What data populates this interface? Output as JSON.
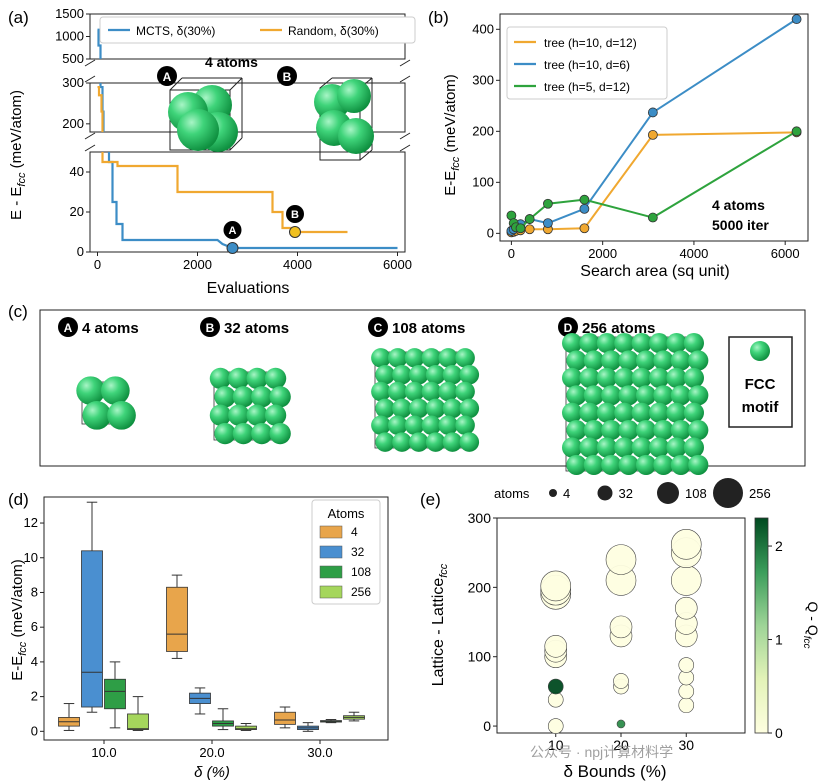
{
  "panels": {
    "a": "(a)",
    "b": "(b)",
    "c": "(c)",
    "d": "(d)",
    "e": "(e)"
  },
  "watermark": "公众号 · npj计算材料学",
  "chart_data": [
    {
      "id": "a",
      "type": "line",
      "xlabel": "Evaluations",
      "ylabel": "E - E",
      "ylabel_sub": "fcc",
      "ylabel_unit": " (meV/atom)",
      "annotation": "4 atoms",
      "broken_axis": true,
      "segments": [
        {
          "ylim": [
            500,
            1500
          ],
          "ticks": [
            500,
            1000,
            1500
          ]
        },
        {
          "ylim": [
            180,
            300
          ],
          "ticks": [
            200,
            300
          ]
        },
        {
          "ylim": [
            0,
            50
          ],
          "ticks": [
            0,
            20,
            40
          ]
        }
      ],
      "xlim": [
        -150,
        6150
      ],
      "xticks": [
        0,
        2000,
        4000,
        6000
      ],
      "legend_placement": "top",
      "series": [
        {
          "name": "MCTS, δ(30%)",
          "color": "#3c8dc6",
          "x": [
            0,
            20,
            20,
            60,
            60,
            100,
            100,
            120,
            120,
            230,
            230,
            300,
            300,
            380,
            380,
            500,
            500,
            2400,
            2500,
            2700,
            6000
          ],
          "y": [
            1150,
            1150,
            800,
            800,
            290,
            290,
            230,
            230,
            130,
            130,
            45,
            45,
            25,
            25,
            14,
            14,
            6,
            6,
            4,
            2,
            2
          ]
        },
        {
          "name": "Random, δ(30%)",
          "color": "#f0a830",
          "x": [
            0,
            30,
            30,
            80,
            80,
            100,
            100,
            400,
            400,
            1600,
            1600,
            3500,
            3500,
            3700,
            3700,
            3900,
            3900,
            5000
          ],
          "y": [
            290,
            290,
            270,
            270,
            230,
            230,
            45,
            45,
            43,
            43,
            30,
            30,
            20,
            20,
            12,
            12,
            10,
            10
          ]
        }
      ],
      "markers": [
        {
          "label": "A",
          "x": 2700,
          "y": 2,
          "color": "#3c8dc6"
        },
        {
          "label": "B",
          "x": 3950,
          "y": 10,
          "color": "#f0c020"
        }
      ],
      "inset_labels": [
        "A",
        "B"
      ]
    },
    {
      "id": "b",
      "type": "line",
      "xlabel": "Search area (sq unit)",
      "ylabel": "E-E",
      "ylabel_sub": "fcc",
      "ylabel_unit": " (meV/atom)",
      "xlim": [
        -250,
        6500
      ],
      "ylim": [
        -15,
        430
      ],
      "xticks": [
        0,
        2000,
        4000,
        6000
      ],
      "yticks": [
        0,
        100,
        200,
        300,
        400
      ],
      "annotation": [
        "4 atoms",
        "5000 iter"
      ],
      "legend_placement": "top-left",
      "series": [
        {
          "name": "tree (h=10, d=12)",
          "color": "#f0a830",
          "x": [
            0,
            50,
            100,
            200,
            400,
            800,
            1600,
            3100,
            6250
          ],
          "y": [
            2,
            3,
            5,
            6,
            8,
            8,
            10,
            193,
            198
          ]
        },
        {
          "name": "tree (h=10, d=6)",
          "color": "#3c8dc6",
          "x": [
            0,
            50,
            100,
            200,
            400,
            800,
            1600,
            3100,
            6250
          ],
          "y": [
            5,
            8,
            12,
            18,
            28,
            20,
            48,
            237,
            420
          ]
        },
        {
          "name": "tree (h=5, d=12)",
          "color": "#2ea33d",
          "x": [
            0,
            50,
            100,
            200,
            400,
            800,
            1600,
            3100,
            6250
          ],
          "y": [
            35,
            20,
            12,
            10,
            28,
            58,
            66,
            31,
            200
          ]
        }
      ]
    },
    {
      "id": "d",
      "type": "box",
      "xlabel": "δ (%)",
      "ylabel": "E-E",
      "ylabel_sub": "fcc",
      "ylabel_unit": " (meV/atom)",
      "ylim": [
        -0.5,
        13.5
      ],
      "yticks": [
        0,
        2,
        4,
        6,
        8,
        10,
        12
      ],
      "categories": [
        "10.0",
        "20.0",
        "30.0"
      ],
      "legend_title": "Atoms",
      "legend_placement": "top-right",
      "series": [
        {
          "name": "4",
          "color": "#e8a54b",
          "boxes": [
            [
              0.05,
              0.3,
              0.55,
              0.8,
              1.6
            ],
            [
              4.2,
              4.6,
              5.6,
              8.3,
              9.0
            ],
            [
              0.2,
              0.4,
              0.65,
              1.1,
              1.4
            ]
          ]
        },
        {
          "name": "32",
          "color": "#4a8fd0",
          "boxes": [
            [
              1.1,
              1.4,
              3.4,
              10.4,
              13.2
            ],
            [
              1.0,
              1.6,
              1.9,
              2.2,
              2.5
            ],
            [
              0.0,
              0.1,
              0.2,
              0.3,
              0.5
            ]
          ]
        },
        {
          "name": "108",
          "color": "#2e9e46",
          "boxes": [
            [
              0.2,
              1.3,
              2.3,
              3.0,
              4.0
            ],
            [
              0.1,
              0.3,
              0.45,
              0.6,
              1.3
            ],
            [
              0.5,
              0.55,
              0.58,
              0.62,
              0.68
            ]
          ]
        },
        {
          "name": "256",
          "color": "#a5d65c",
          "boxes": [
            [
              0.05,
              0.1,
              0.15,
              1.0,
              2.0
            ],
            [
              0.05,
              0.1,
              0.15,
              0.3,
              0.45
            ],
            [
              0.6,
              0.7,
              0.8,
              0.9,
              1.1
            ]
          ]
        }
      ]
    },
    {
      "id": "e",
      "type": "scatter",
      "xlabel": "δ Bounds (%)",
      "ylabel": "Lattice - Lattice",
      "ylabel_sub": "fcc",
      "xlim": [
        1,
        39
      ],
      "ylim": [
        -10,
        300
      ],
      "xticks": [
        10,
        20,
        30
      ],
      "yticks": [
        0,
        100,
        200,
        300
      ],
      "colorbar": {
        "label": "Q - Q",
        "label_sub": "fcc",
        "min": 0,
        "max": 2.3,
        "ticks": [
          0,
          1,
          2
        ],
        "colors": [
          "#fefee0",
          "#d4edb1",
          "#7dc47d",
          "#2c8c4a",
          "#004a20"
        ]
      },
      "size_legend": {
        "title": "atoms",
        "values": [
          4,
          32,
          108,
          256
        ]
      },
      "points": [
        {
          "x": 10,
          "y": 0,
          "atoms": 32,
          "q": 0.05
        },
        {
          "x": 10,
          "y": 38,
          "atoms": 32,
          "q": 0.05
        },
        {
          "x": 10,
          "y": 57,
          "atoms": 32,
          "q": 2.3
        },
        {
          "x": 10,
          "y": 100,
          "atoms": 108,
          "q": 0.1
        },
        {
          "x": 10,
          "y": 108,
          "atoms": 108,
          "q": 0.1
        },
        {
          "x": 10,
          "y": 115,
          "atoms": 108,
          "q": 0.1
        },
        {
          "x": 10,
          "y": 190,
          "atoms": 256,
          "q": 0.1
        },
        {
          "x": 10,
          "y": 196,
          "atoms": 256,
          "q": 0.1
        },
        {
          "x": 10,
          "y": 202,
          "atoms": 256,
          "q": 0.1
        },
        {
          "x": 20,
          "y": 3,
          "atoms": 4,
          "q": 2.0
        },
        {
          "x": 20,
          "y": 57,
          "atoms": 32,
          "q": 0.05
        },
        {
          "x": 20,
          "y": 65,
          "atoms": 32,
          "q": 0.05
        },
        {
          "x": 20,
          "y": 130,
          "atoms": 108,
          "q": 0.1
        },
        {
          "x": 20,
          "y": 143,
          "atoms": 108,
          "q": 0.1
        },
        {
          "x": 20,
          "y": 210,
          "atoms": 256,
          "q": 0.1
        },
        {
          "x": 20,
          "y": 240,
          "atoms": 256,
          "q": 0.1
        },
        {
          "x": 30,
          "y": 30,
          "atoms": 32,
          "q": 0.05
        },
        {
          "x": 30,
          "y": 50,
          "atoms": 32,
          "q": 0.05
        },
        {
          "x": 30,
          "y": 70,
          "atoms": 32,
          "q": 0.05
        },
        {
          "x": 30,
          "y": 88,
          "atoms": 32,
          "q": 0.05
        },
        {
          "x": 30,
          "y": 130,
          "atoms": 108,
          "q": 0.1
        },
        {
          "x": 30,
          "y": 148,
          "atoms": 108,
          "q": 0.1
        },
        {
          "x": 30,
          "y": 170,
          "atoms": 108,
          "q": 0.1
        },
        {
          "x": 30,
          "y": 210,
          "atoms": 256,
          "q": 0.1
        },
        {
          "x": 30,
          "y": 250,
          "atoms": 256,
          "q": 0.1
        },
        {
          "x": 30,
          "y": 262,
          "atoms": 256,
          "q": 0.1
        }
      ]
    }
  ],
  "panel_c": {
    "clusters": [
      {
        "letter": "A",
        "label": "4 atoms",
        "n": 2
      },
      {
        "letter": "B",
        "label": "32 atoms",
        "n": 4
      },
      {
        "letter": "C",
        "label": "108 atoms",
        "n": 6
      },
      {
        "letter": "D",
        "label": "256 atoms",
        "n": 8
      }
    ],
    "motif_label_1": "FCC",
    "motif_label_2": "motif"
  }
}
